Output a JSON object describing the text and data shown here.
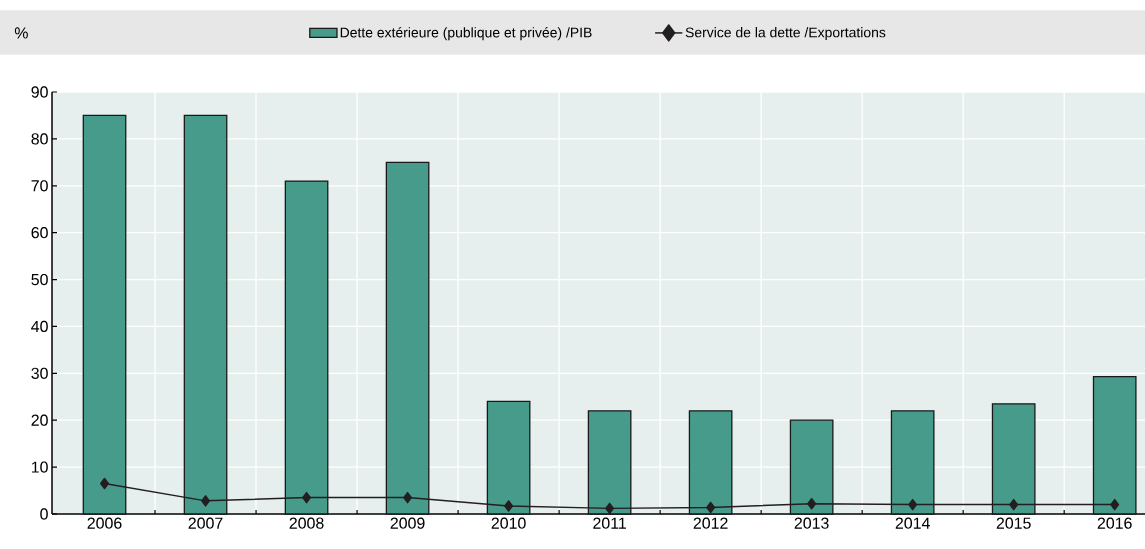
{
  "chart_data": {
    "type": "bar",
    "ylabel": "%",
    "categories": [
      "2006",
      "2007",
      "2008",
      "2009",
      "2010",
      "2011",
      "2012",
      "2013",
      "2014",
      "2015",
      "2016"
    ],
    "series": [
      {
        "name": "Dette extérieure (publique et privée) /PIB",
        "color": "#469b8a",
        "values": [
          85,
          85,
          71,
          75,
          24,
          22,
          22,
          20,
          22,
          23.5,
          29.3
        ]
      },
      {
        "name": "Service de la dette /Exportations",
        "type": "line",
        "color": "#231f20",
        "marker": "diamond",
        "values": [
          6.5,
          2.8,
          3.5,
          3.5,
          1.7,
          1.2,
          1.4,
          2.2,
          2.0,
          2.0,
          2.0
        ]
      }
    ],
    "ylim": [
      0,
      90
    ],
    "yticks": [
      0,
      10,
      20,
      30,
      40,
      50,
      60,
      70,
      80,
      90
    ],
    "grid": true,
    "legend": "top"
  }
}
